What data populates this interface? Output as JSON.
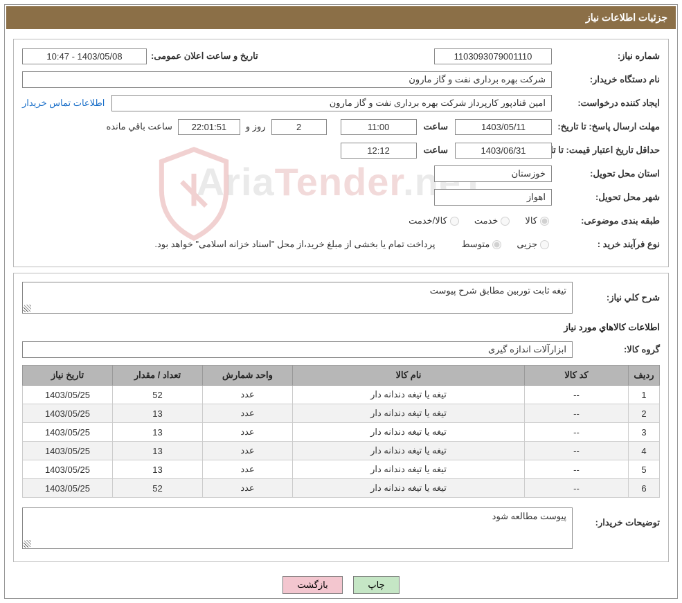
{
  "title_bar": "جزئیات اطلاعات نیاز",
  "watermark_a": "Aria",
  "watermark_b": "Tender",
  "watermark_c": ".neT",
  "fields": {
    "need_no_label": "شماره نیاز:",
    "need_no": "1103093079001110",
    "announce_label": "تاریخ و ساعت اعلان عمومی:",
    "announce_val": "1403/05/08 - 10:47",
    "buyer_org_label": "نام دستگاه خریدار:",
    "buyer_org": "شرکت بهره برداری نفت و گاز مارون",
    "requester_label": "ایجاد کننده درخواست:",
    "requester": "امین قنادپور کارپرداز شرکت بهره برداری نفت و گاز مارون",
    "contact_link": "اطلاعات تماس خریدار",
    "deadline_label": "مهلت ارسال پاسخ: تا تاریخ:",
    "deadline_date": "1403/05/11",
    "time_lbl": "ساعت",
    "deadline_time": "11:00",
    "days": "2",
    "days_lbl": "روز و",
    "countdown": "22:01:51",
    "remaining_lbl": "ساعت باقي مانده",
    "validity_label": "حداقل تاریخ اعتبار قیمت: تا تاریخ:",
    "validity_date": "1403/06/31",
    "validity_time": "12:12",
    "province_label": "استان محل تحویل:",
    "province": "خوزستان",
    "city_label": "شهر محل تحویل:",
    "city": "اهواز",
    "class_label": "طبقه بندی موضوعی:",
    "class_goods": "کالا",
    "class_service": "خدمت",
    "class_both": "کالا/خدمت",
    "proc_type_label": "نوع فرآیند خرید :",
    "proc_small": "جزیی",
    "proc_medium": "متوسط",
    "proc_note": "پرداخت تمام یا بخشی از مبلغ خرید،از محل \"اسناد خزانه اسلامی\" خواهد بود.",
    "desc_label": "شرح کلي نياز:",
    "desc_text": "تیغه ثابت توربین مطابق شرح پیوست",
    "items_heading": "اطلاعات کالاهاي مورد نياز",
    "group_label": "گروه کالا:",
    "group_val": "ابزارآلات اندازه گیری",
    "buyer_notes_label": "توضیحات خریدار:",
    "buyer_notes": "پیوست مطالعه شود"
  },
  "table": {
    "headers": {
      "row": "ردیف",
      "code": "کد کالا",
      "name": "نام کالا",
      "unit": "واحد شمارش",
      "qty": "تعداد / مقدار",
      "date": "تاریخ نیاز"
    },
    "col_widths": {
      "row": "45px",
      "code": "150px",
      "name": "auto",
      "unit": "130px",
      "qty": "130px",
      "date": "130px"
    },
    "rows": [
      {
        "n": "1",
        "code": "--",
        "name": "تیغه یا تیغه دندانه دار",
        "unit": "عدد",
        "qty": "52",
        "date": "1403/05/25"
      },
      {
        "n": "2",
        "code": "--",
        "name": "تیغه یا تیغه دندانه دار",
        "unit": "عدد",
        "qty": "13",
        "date": "1403/05/25"
      },
      {
        "n": "3",
        "code": "--",
        "name": "تیغه یا تیغه دندانه دار",
        "unit": "عدد",
        "qty": "13",
        "date": "1403/05/25"
      },
      {
        "n": "4",
        "code": "--",
        "name": "تیغه یا تیغه دندانه دار",
        "unit": "عدد",
        "qty": "13",
        "date": "1403/05/25"
      },
      {
        "n": "5",
        "code": "--",
        "name": "تیغه یا تیغه دندانه دار",
        "unit": "عدد",
        "qty": "13",
        "date": "1403/05/25"
      },
      {
        "n": "6",
        "code": "--",
        "name": "تیغه یا تیغه دندانه دار",
        "unit": "عدد",
        "qty": "52",
        "date": "1403/05/25"
      }
    ]
  },
  "buttons": {
    "print": "چاپ",
    "back": "بازگشت"
  },
  "colors": {
    "title_bg": "#8b6f47",
    "header_bg": "#b7b7b7",
    "btn_print_bg": "#c5e6c5",
    "btn_back_bg": "#f3c6cf"
  }
}
